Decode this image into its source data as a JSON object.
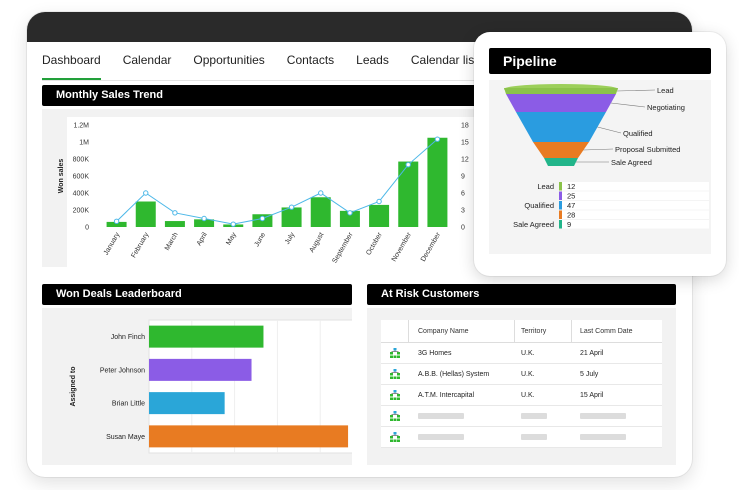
{
  "tabs": [
    "Dashboard",
    "Calendar",
    "Opportunities",
    "Contacts",
    "Leads",
    "Calendar list"
  ],
  "colors": {
    "green": "#2fb82f",
    "line": "#4db8e8",
    "purple": "#8b5ce6",
    "blue": "#2aa6d8",
    "orange": "#e87b22"
  },
  "monthly": {
    "title": "Monthly Sales Trend",
    "ylabel": "Won sales",
    "left_ticks": [
      "1.2M",
      "1M",
      "800K",
      "600K",
      "400K",
      "200K",
      "0"
    ],
    "right_ticks": [
      "18",
      "15",
      "12",
      "9",
      "6",
      "3",
      "0"
    ]
  },
  "leaderboard": {
    "title": "Won Deals Leaderboard",
    "ylabel": "Assigned to"
  },
  "at_risk": {
    "title": "At Risk Customers",
    "headers": [
      "Company Name",
      "Territory",
      "Last Comm Date"
    ],
    "rows": [
      {
        "company": "3G Homes",
        "territory": "U.K.",
        "date": "21 April"
      },
      {
        "company": "A.B.B. (Hellas) System",
        "territory": "U.K.",
        "date": "5 July"
      },
      {
        "company": "A.T.M. Intercapital",
        "territory": "U.K.",
        "date": "15 April"
      }
    ],
    "icon": "hierarchy-icon"
  },
  "pipeline": {
    "title": "Pipeline"
  },
  "chart_data": [
    {
      "type": "bar",
      "title": "Monthly Sales Trend",
      "categories": [
        "January",
        "February",
        "March",
        "April",
        "May",
        "June",
        "July",
        "August",
        "September",
        "October",
        "November",
        "December"
      ],
      "ylabel": "Won sales",
      "ylim": [
        0,
        1200000
      ],
      "y2lim": [
        0,
        18
      ],
      "series": [
        {
          "values": [
            60000,
            300000,
            70000,
            90000,
            30000,
            150000,
            230000,
            350000,
            190000,
            260000,
            770000,
            1050000
          ]
        },
        {
          "values": [
            1,
            6,
            2.5,
            1.5,
            0.5,
            1.5,
            3.5,
            6,
            2.5,
            4.5,
            11,
            15.5
          ]
        }
      ]
    },
    {
      "type": "bar",
      "title": "Won Deals Leaderboard",
      "categories": [
        "John Finch",
        "Peter Johnson",
        "Brian Little",
        "Susan Maye"
      ],
      "ylabel": "Assigned to",
      "values": [
        115,
        103,
        76,
        200
      ],
      "xlim": [
        0,
        215
      ],
      "colors": [
        "#2fb82f",
        "#8b5ce6",
        "#2aa6d8",
        "#e87b22"
      ]
    },
    {
      "type": "bar",
      "title": "Pipeline",
      "categories": [
        "Lead",
        "Negotiating",
        "Qualified",
        "Proposal Submitted",
        "Sale Agreed"
      ],
      "funnel_values": [
        12,
        25,
        47,
        28,
        9
      ],
      "funnel_colors": [
        "#8bc34a",
        "#8b5ce6",
        "#2a9ce0",
        "#e87b22",
        "#22b58a"
      ],
      "table": [
        {
          "label": "Lead",
          "value": 12,
          "color": "#8bc34a"
        },
        {
          "label": "",
          "value": 25,
          "color": "#8b5ce6"
        },
        {
          "label": "Qualified",
          "value": 47,
          "color": "#2a9ce0"
        },
        {
          "label": "",
          "value": 28,
          "color": "#e87b22"
        },
        {
          "label": "Sale Agreed",
          "value": 9,
          "color": "#22b58a"
        }
      ]
    }
  ]
}
